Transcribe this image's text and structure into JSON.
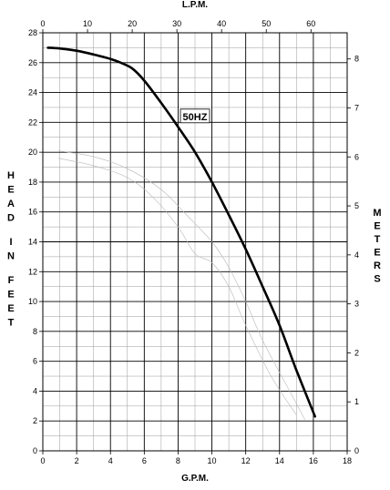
{
  "chart_data": {
    "type": "line",
    "title": "",
    "xlabel": "G.P.M.",
    "ylabel": "HEAD IN FEET",
    "x2label": "L.P.M.",
    "y2label": "METERS",
    "xlim": [
      0,
      18
    ],
    "ylim": [
      0,
      28
    ],
    "x2lim": [
      0,
      68.1
    ],
    "y2lim": [
      0,
      8.534
    ],
    "xticks": [
      0,
      2,
      4,
      6,
      8,
      10,
      12,
      14,
      16,
      18
    ],
    "yticks": [
      0,
      2,
      4,
      6,
      8,
      10,
      12,
      14,
      16,
      18,
      20,
      22,
      24,
      26,
      28
    ],
    "x2ticks": [
      0,
      10,
      20,
      30,
      40,
      50,
      60
    ],
    "y2ticks": [
      0,
      1,
      2,
      3,
      4,
      5,
      6,
      7,
      8
    ],
    "grid": true,
    "series": [
      {
        "name": "",
        "x": [
          0.3,
          1.0,
          2.0,
          3.0,
          4.0,
          4.7,
          5.3,
          6.0,
          7.0,
          8.0,
          9.0,
          10.0,
          11.0,
          12.0,
          13.0,
          14.0,
          15.0,
          16.1
        ],
        "y": [
          27.0,
          26.95,
          26.8,
          26.55,
          26.25,
          25.95,
          25.6,
          24.8,
          23.3,
          21.7,
          20.0,
          18.0,
          15.8,
          13.5,
          11.0,
          8.4,
          5.4,
          2.3
        ]
      }
    ],
    "annotations": [
      {
        "text": "50HZ",
        "x": 9.0,
        "y": 22.4
      }
    ],
    "faint_lines": [
      {
        "x": [
          0.9,
          3.0,
          5.0,
          7.0,
          8.5,
          10.0,
          11.0,
          12.0,
          13.0,
          14.5,
          15.5
        ],
        "y": [
          20.1,
          19.7,
          18.9,
          17.5,
          15.8,
          14.0,
          12.3,
          10.0,
          7.4,
          4.2,
          2.1
        ]
      },
      {
        "x": [
          0.9,
          3.0,
          5.0,
          6.5,
          8.0,
          9.0,
          10.0,
          11.0,
          12.0,
          13.5,
          15.0
        ],
        "y": [
          19.6,
          19.1,
          18.3,
          17.0,
          15.0,
          13.2,
          12.6,
          11.0,
          8.4,
          5.0,
          2.4
        ]
      }
    ]
  }
}
